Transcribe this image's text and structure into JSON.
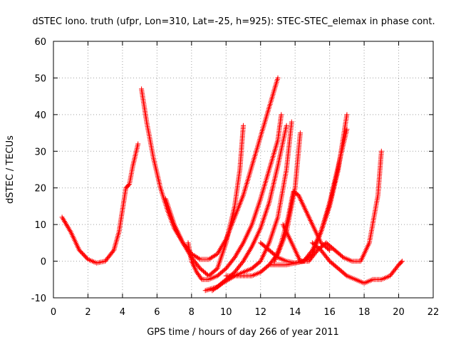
{
  "chart_data": {
    "type": "scatter",
    "title": "dSTEC Iono. truth (ufpr, Lon=310, Lat=-25, h=925): STEC-STEC_elemax in phase cont.",
    "xlabel": "GPS time / hours of day 266 of year 2011",
    "ylabel": "dSTEC  / TECUs",
    "xlim": [
      0,
      22
    ],
    "ylim": [
      -10,
      60
    ],
    "xticks": [
      0,
      2,
      4,
      6,
      8,
      10,
      12,
      14,
      16,
      18,
      20,
      22
    ],
    "yticks": [
      -10,
      0,
      10,
      20,
      30,
      40,
      50,
      60
    ],
    "grid": true,
    "marker": "+",
    "color": "#ff0000",
    "series": [
      {
        "x": [
          0.5,
          1.0,
          1.5,
          2.0,
          2.5,
          3.0,
          3.5,
          3.8,
          4.0,
          4.2,
          4.4,
          4.6,
          4.8,
          4.9
        ],
        "y": [
          12,
          8,
          3,
          0.5,
          -0.5,
          0,
          3,
          8,
          14,
          20,
          21,
          26,
          30,
          32
        ]
      },
      {
        "x": [
          5.1,
          5.4,
          5.8,
          6.2,
          6.6,
          7.0,
          7.5,
          8.0,
          8.5,
          9.0,
          9.5,
          10.0,
          10.5,
          10.8,
          11.0
        ],
        "y": [
          47,
          38,
          28,
          20,
          14,
          9,
          5,
          1,
          -2,
          -4,
          -2,
          5,
          15,
          25,
          37
        ]
      },
      {
        "x": [
          6.5,
          7.0,
          7.5,
          8.0,
          8.5,
          9.0,
          9.5,
          10.0,
          10.5,
          11.0,
          11.5,
          12.0,
          12.5,
          13.0
        ],
        "y": [
          17,
          10,
          5,
          2,
          0.5,
          0.5,
          2,
          6,
          12,
          18,
          26,
          34,
          42,
          50
        ]
      },
      {
        "x": [
          7.8,
          8.0,
          8.3,
          8.6,
          9.0,
          9.5,
          10.0,
          10.5,
          11.0,
          11.5,
          12.0,
          12.5,
          13.0,
          13.2
        ],
        "y": [
          5,
          0,
          -3,
          -5,
          -5,
          -4,
          -2,
          1,
          5,
          10,
          17,
          25,
          33,
          40
        ]
      },
      {
        "x": [
          8.8,
          9.5,
          10.0,
          10.5,
          11.0,
          11.5,
          12.0,
          12.5,
          13.0,
          13.5
        ],
        "y": [
          -8,
          -7,
          -5,
          -3,
          0,
          4,
          9,
          16,
          26,
          37
        ]
      },
      {
        "x": [
          9.2,
          9.8,
          10.5,
          11.0,
          11.5,
          12.0,
          12.5,
          13.0,
          13.5,
          13.8
        ],
        "y": [
          -8,
          -6,
          -4,
          -3,
          -2,
          0,
          5,
          12,
          25,
          38
        ]
      },
      {
        "x": [
          10.0,
          10.5,
          11.0,
          11.5,
          12.0,
          12.5,
          13.0,
          13.5,
          14.0,
          14.3
        ],
        "y": [
          -4,
          -4,
          -4,
          -4,
          -3,
          -1,
          2,
          8,
          20,
          35
        ]
      },
      {
        "x": [
          12.0,
          12.5,
          13.0,
          13.5,
          14.0,
          14.5,
          15.0,
          15.5,
          16.0,
          16.5,
          17.0
        ],
        "y": [
          5,
          3,
          1,
          0,
          -0.5,
          0,
          3,
          8,
          15,
          25,
          40
        ]
      },
      {
        "x": [
          12.5,
          13.0,
          13.5,
          14.0,
          14.5,
          15.0,
          15.5,
          16.0,
          16.5,
          17.0
        ],
        "y": [
          -1,
          -1,
          -1,
          -0.5,
          0,
          2,
          8,
          16,
          26,
          36
        ]
      },
      {
        "x": [
          12.8,
          13.2,
          13.6,
          13.9,
          14.2,
          14.6,
          15.0,
          15.5,
          16.0
        ],
        "y": [
          0,
          5,
          12,
          19,
          18,
          14,
          10,
          5,
          3
        ]
      },
      {
        "x": [
          13.3,
          13.8,
          14.3,
          14.8,
          15.3,
          15.8,
          16.3,
          16.8,
          17.3,
          17.8,
          18.3,
          18.8,
          19.0
        ],
        "y": [
          10,
          5,
          0,
          0,
          3,
          5,
          3,
          1,
          0,
          0,
          5,
          18,
          30
        ]
      },
      {
        "x": [
          15.0,
          15.5,
          16.0,
          16.5,
          17.0,
          17.5,
          18.0,
          18.5,
          19.0,
          19.5,
          20.0,
          20.2
        ],
        "y": [
          5,
          3,
          0,
          -2,
          -4,
          -5,
          -6,
          -5,
          -5,
          -4,
          -1,
          0
        ]
      }
    ]
  }
}
